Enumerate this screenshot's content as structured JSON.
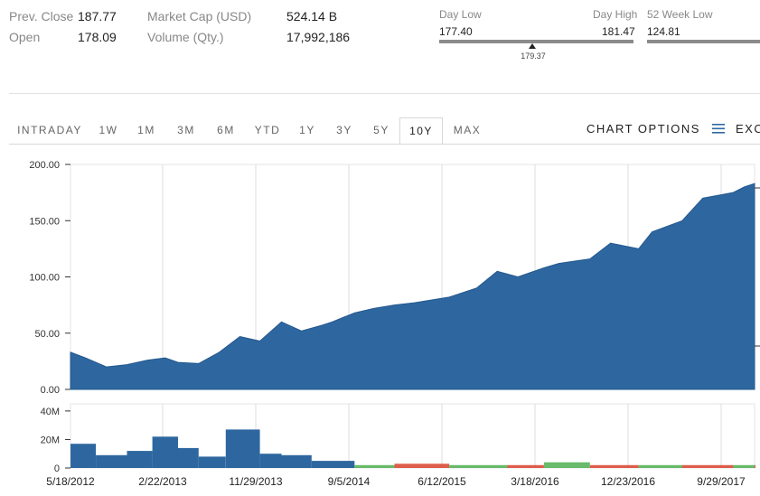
{
  "stats": {
    "prev_close_label": "Prev. Close",
    "prev_close_value": "187.77",
    "open_label": "Open",
    "open_value": "178.09",
    "market_cap_label": "Market Cap (USD)",
    "market_cap_value": "524.14 B",
    "volume_label": "Volume (Qty.)",
    "volume_value": "17,992,186",
    "day_low_label": "Day Low",
    "day_low_value": "177.40",
    "day_high_label": "Day High",
    "day_high_value": "181.47",
    "current_price": "179.37",
    "current_price_level": 0.48,
    "week52_low_label": "52 Week Low",
    "week52_low_value": "124.81"
  },
  "tabs": [
    "INTRADAY",
    "1W",
    "1M",
    "3M",
    "6M",
    "YTD",
    "1Y",
    "3Y",
    "5Y",
    "10Y",
    "MAX"
  ],
  "active_tab": "10Y",
  "chart_options_label": "CHART OPTIONS",
  "menu_icon": "hamburger-icon",
  "export_label": "EXC",
  "colors": {
    "area_fill": "#2e67a0",
    "volume_fill": "#2e67a0",
    "volume_up": "#4caf50",
    "volume_down": "#d9412b",
    "grid": "#dddddd"
  },
  "chart_data": [
    {
      "type": "area",
      "title": "",
      "ylim": [
        0,
        200
      ],
      "y_ticks": [
        "200.00",
        "150.00",
        "100.00",
        "50.00",
        "0.00"
      ],
      "x_ticks": [
        "5/18/2012",
        "2/22/2013",
        "11/29/2013",
        "9/5/2014",
        "6/12/2015",
        "3/18/2016",
        "12/23/2016",
        "9/29/2017"
      ],
      "grid": true,
      "series": [
        {
          "x": [
            "2012-05-18",
            "2012-07-01",
            "2012-09-01",
            "2012-11-01",
            "2013-01-01",
            "2013-02-22",
            "2013-04-01",
            "2013-06-01",
            "2013-08-01",
            "2013-10-01",
            "2013-11-29",
            "2014-02-01",
            "2014-04-01",
            "2014-06-01",
            "2014-07-01",
            "2014-09-05",
            "2014-11-01",
            "2015-01-01",
            "2015-03-01",
            "2015-06-12",
            "2015-09-01",
            "2015-11-01",
            "2016-01-01",
            "2016-03-18",
            "2016-05-01",
            "2016-08-01",
            "2016-10-01",
            "2016-12-23",
            "2017-02-01",
            "2017-05-01",
            "2017-07-01",
            "2017-09-29",
            "2017-11-01",
            "2017-12-01"
          ],
          "values": [
            33,
            28,
            20,
            22,
            26,
            28,
            24,
            23,
            33,
            47,
            43,
            60,
            52,
            57,
            60,
            68,
            72,
            75,
            77,
            82,
            90,
            105,
            100,
            108,
            112,
            116,
            130,
            125,
            140,
            150,
            170,
            175,
            180,
            183
          ]
        }
      ]
    },
    {
      "type": "bar",
      "title": "",
      "ylim": [
        0,
        45
      ],
      "y_ticks": [
        "40M",
        "20M",
        "0"
      ],
      "grid": true,
      "series": [
        {
          "x": [
            "2012-05-18",
            "2012-08-01",
            "2012-11-01",
            "2013-01-15",
            "2013-04-01",
            "2013-06-01",
            "2013-08-20",
            "2013-11-29",
            "2014-02-01",
            "2014-05-01",
            "2014-09-05",
            "2015-01-01",
            "2015-06-12",
            "2015-12-01",
            "2016-03-18",
            "2016-08-01",
            "2016-12-23",
            "2017-05-01",
            "2017-09-29",
            "2017-12-01"
          ],
          "values": [
            17,
            9,
            12,
            22,
            14,
            8,
            27,
            10,
            9,
            5,
            2,
            3,
            2,
            2,
            4,
            2,
            2,
            2,
            2,
            2
          ]
        }
      ]
    }
  ]
}
